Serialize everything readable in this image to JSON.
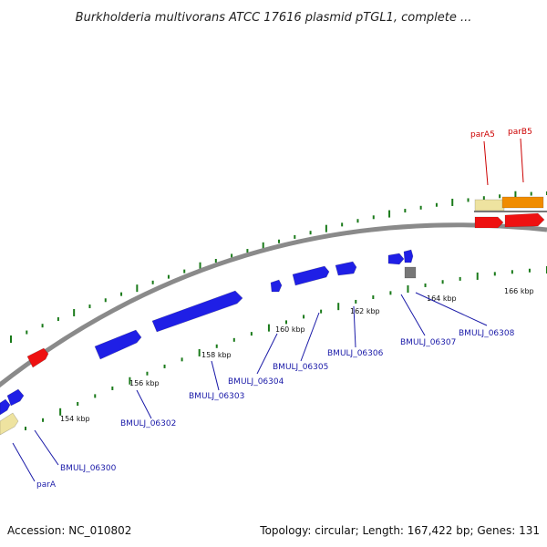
{
  "title": "Burkholderia multivorans ATCC 17616 plasmid pTGL1, complete ...",
  "footer": {
    "accession": "Accession: NC_010802",
    "summary": "Topology: circular; Length: 167,422 bp; Genes: 131"
  },
  "colors": {
    "backbone": "#8a8a8a",
    "tick": "#1a7a1a",
    "blue_gene": "#1f1fe6",
    "red_gene": "#ee1111",
    "orange_gene": "#f08c00",
    "khaki_gene": "#eee3a0",
    "gray_gene": "#777777",
    "blue_label": "#1a1aa8",
    "red_label": "#cc0000"
  },
  "ruler": [
    {
      "label": "154 kbp"
    },
    {
      "label": "156 kbp"
    },
    {
      "label": "158 kbp"
    },
    {
      "label": "160 kbp"
    },
    {
      "label": "162 kbp"
    },
    {
      "label": "164 kbp"
    },
    {
      "label": "166 kbp"
    }
  ],
  "gene_labels": [
    {
      "text": "parA5",
      "color": "red"
    },
    {
      "text": "parB5",
      "color": "red"
    },
    {
      "text": "BMULJ_06300",
      "color": "blue"
    },
    {
      "text": "parA",
      "color": "blue"
    },
    {
      "text": "BMULJ_06302",
      "color": "blue"
    },
    {
      "text": "BMULJ_06303",
      "color": "blue"
    },
    {
      "text": "BMULJ_06304",
      "color": "blue"
    },
    {
      "text": "BMULJ_06305",
      "color": "blue"
    },
    {
      "text": "BMULJ_06306",
      "color": "blue"
    },
    {
      "text": "BMULJ_06307",
      "color": "blue"
    },
    {
      "text": "BMULJ_06308",
      "color": "blue"
    }
  ]
}
